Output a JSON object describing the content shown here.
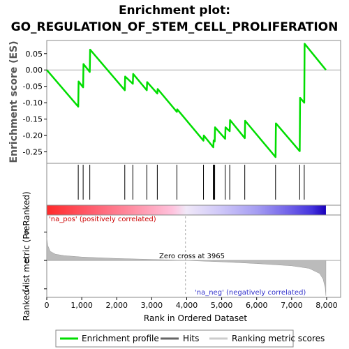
{
  "chart_data": {
    "type": "line",
    "title_line1": "Enrichment plot:",
    "title_line2": "GO_REGULATION_OF_STEM_CELL_PROLIFERATION",
    "top_panel": {
      "ylabel": "Enrichment score (ES)",
      "ylim": [
        -0.285,
        0.09
      ],
      "yticks": [
        0.05,
        0.0,
        -0.05,
        -0.1,
        -0.15,
        -0.2,
        -0.25
      ],
      "ytick_labels": [
        "0.05",
        "0.00",
        "-0.05",
        "-0.10",
        "-0.15",
        "-0.20",
        "-0.25"
      ],
      "grid": false,
      "series": [
        {
          "name": "Enrichment profile",
          "color": "#00dd00",
          "x": [
            0,
            900,
            910,
            1040,
            1050,
            1230,
            1240,
            2230,
            2240,
            2460,
            2470,
            2860,
            2870,
            3160,
            3170,
            3720,
            3730,
            4480,
            4490,
            4760,
            4770,
            4800,
            4810,
            5100,
            5110,
            5230,
            5240,
            5660,
            5670,
            6540,
            6550,
            7230,
            7240,
            7360,
            7370,
            7980
          ],
          "y": [
            0.0,
            -0.112,
            -0.035,
            -0.053,
            0.018,
            -0.006,
            0.062,
            -0.062,
            -0.02,
            -0.042,
            -0.012,
            -0.062,
            -0.037,
            -0.072,
            -0.058,
            -0.128,
            -0.12,
            -0.216,
            -0.2,
            -0.236,
            -0.215,
            -0.218,
            -0.175,
            -0.21,
            -0.175,
            -0.187,
            -0.153,
            -0.208,
            -0.155,
            -0.266,
            -0.163,
            -0.248,
            -0.085,
            -0.1,
            0.08,
            0.0
          ]
        }
      ]
    },
    "hits": [
      900,
      1040,
      1230,
      2230,
      2460,
      2860,
      3160,
      3720,
      4480,
      4760,
      4780,
      4800,
      5100,
      5230,
      5660,
      6540,
      7230,
      7360
    ],
    "bottom_panel": {
      "ylabel": "Ranked list metric (PreRanked)",
      "xlabel": "Rank in Ordered Dataset",
      "ylim": [
        -6.5,
        8
      ],
      "yticks": [
        5,
        0,
        -5
      ],
      "ytick_labels": [
        "5",
        "0",
        "-5"
      ],
      "xlim": [
        0,
        8400
      ],
      "xticks": [
        0,
        1000,
        2000,
        3000,
        4000,
        5000,
        6000,
        7000,
        8000
      ],
      "xtick_labels": [
        "0",
        "1,000",
        "2,000",
        "3,000",
        "4,000",
        "5,000",
        "6,000",
        "7,000",
        "8,000"
      ],
      "metric_curve": {
        "x": [
          0,
          30,
          100,
          250,
          500,
          1000,
          2000,
          3000,
          3965,
          5000,
          6000,
          7000,
          7500,
          7800,
          7900,
          7960,
          7980
        ],
        "y": [
          4.0,
          2.6,
          1.6,
          1.1,
          0.85,
          0.6,
          0.35,
          0.18,
          0.0,
          -0.25,
          -0.55,
          -0.95,
          -1.4,
          -2.3,
          -3.3,
          -4.8,
          -6.2
        ]
      },
      "zero_cross": 3965,
      "annotation_pos": "'na_pos' (positively correlated)",
      "annotation_neg": "'na_neg' (negatively correlated)",
      "annotation_zero": "Zero cross at 3965"
    },
    "x_max_rank": 7980,
    "legend": {
      "placement": "bottom",
      "items": [
        {
          "label": "Enrichment profile",
          "color": "#00dd00"
        },
        {
          "label": "Hits",
          "color": "#000000"
        },
        {
          "label": "Ranking metric scores",
          "color": "#bbbbbb"
        }
      ]
    },
    "colors": {
      "profile": "#00dd00",
      "metric_fill": "#bbbbbb",
      "pos_text": "#cc0000",
      "neg_text": "#3333cc"
    }
  }
}
